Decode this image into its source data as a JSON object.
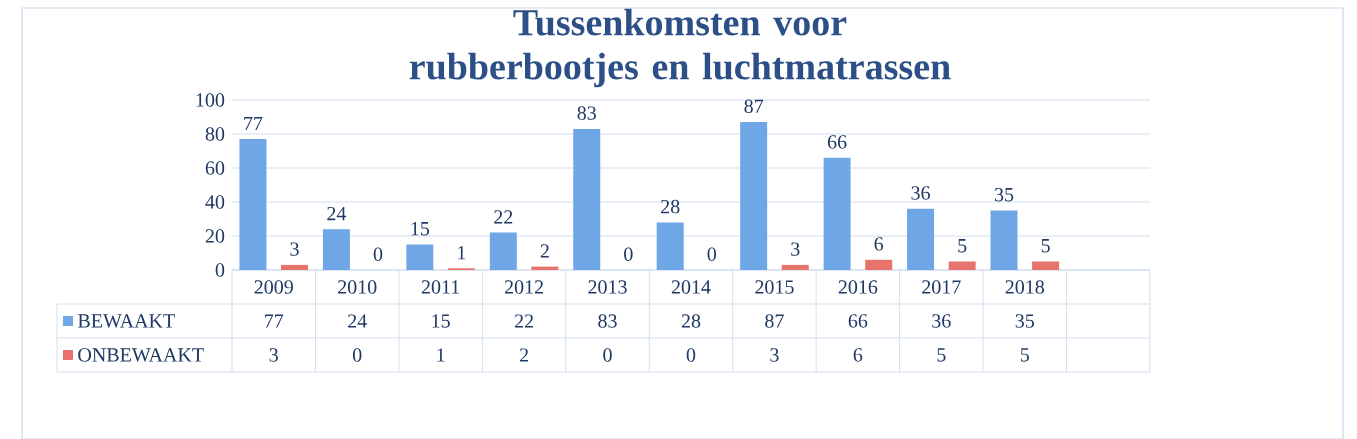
{
  "chart_data": {
    "type": "bar",
    "title": "Tussenkomsten voor rubberbootjes en luchtmatrassen",
    "categories": [
      "2009",
      "2010",
      "2011",
      "2012",
      "2013",
      "2014",
      "2015",
      "2016",
      "2017",
      "2018"
    ],
    "series": [
      {
        "name": "BEWAAKT",
        "color": "#6fa6e6",
        "values": [
          77,
          24,
          15,
          22,
          83,
          28,
          87,
          66,
          36,
          35
        ],
        "value_labels": [
          "77",
          "24",
          "15",
          "22",
          "83",
          "28",
          "87",
          "66",
          "36",
          "35"
        ]
      },
      {
        "name": "ONBEWAAKT",
        "color": "#e8736c",
        "values": [
          3,
          0,
          1,
          2,
          0,
          0,
          3,
          6,
          5,
          5
        ],
        "value_labels": [
          "3",
          "0",
          "1",
          "2",
          "0",
          "0",
          "3",
          "6",
          "5",
          "5"
        ]
      }
    ],
    "ylim": [
      0,
      100
    ],
    "yticks": [
      0,
      20,
      40,
      60,
      80,
      100
    ],
    "grid": "y",
    "data_labels": true,
    "legend": "bottom"
  }
}
